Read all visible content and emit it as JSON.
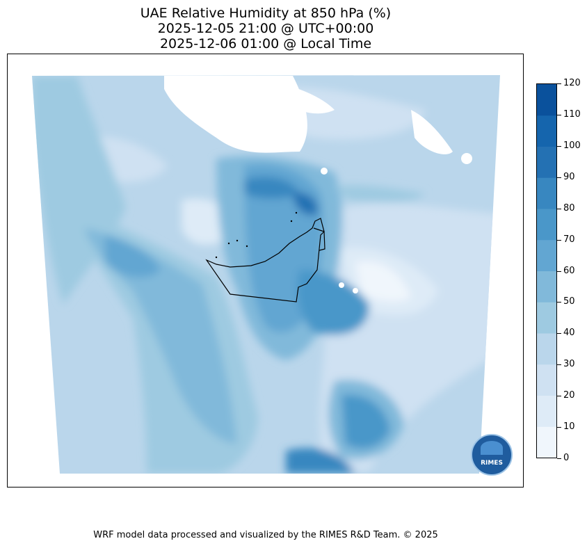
{
  "title": {
    "line1": "UAE Relative Humidity at 850 hPa (%)",
    "line2": "2025-12-05 21:00 @ UTC+00:00",
    "line3": "2025-12-06 01:00 @ Local Time"
  },
  "colorbar": {
    "ticks": [
      "0",
      "10",
      "20",
      "30",
      "40",
      "50",
      "60",
      "70",
      "80",
      "90",
      "100",
      "110",
      "120"
    ],
    "colors": [
      "#f0f6fc",
      "#deebf7",
      "#cfe1f2",
      "#bad6eb",
      "#9ecae1",
      "#81b9da",
      "#62a6d2",
      "#4a97c9",
      "#3887c0",
      "#2471b3",
      "#1565ad",
      "#0a519c",
      "#08306b"
    ]
  },
  "logo": {
    "text": "RIMES"
  },
  "credit": "WRF model data processed and visualized by the RIMES R&D Team. © 2025"
}
